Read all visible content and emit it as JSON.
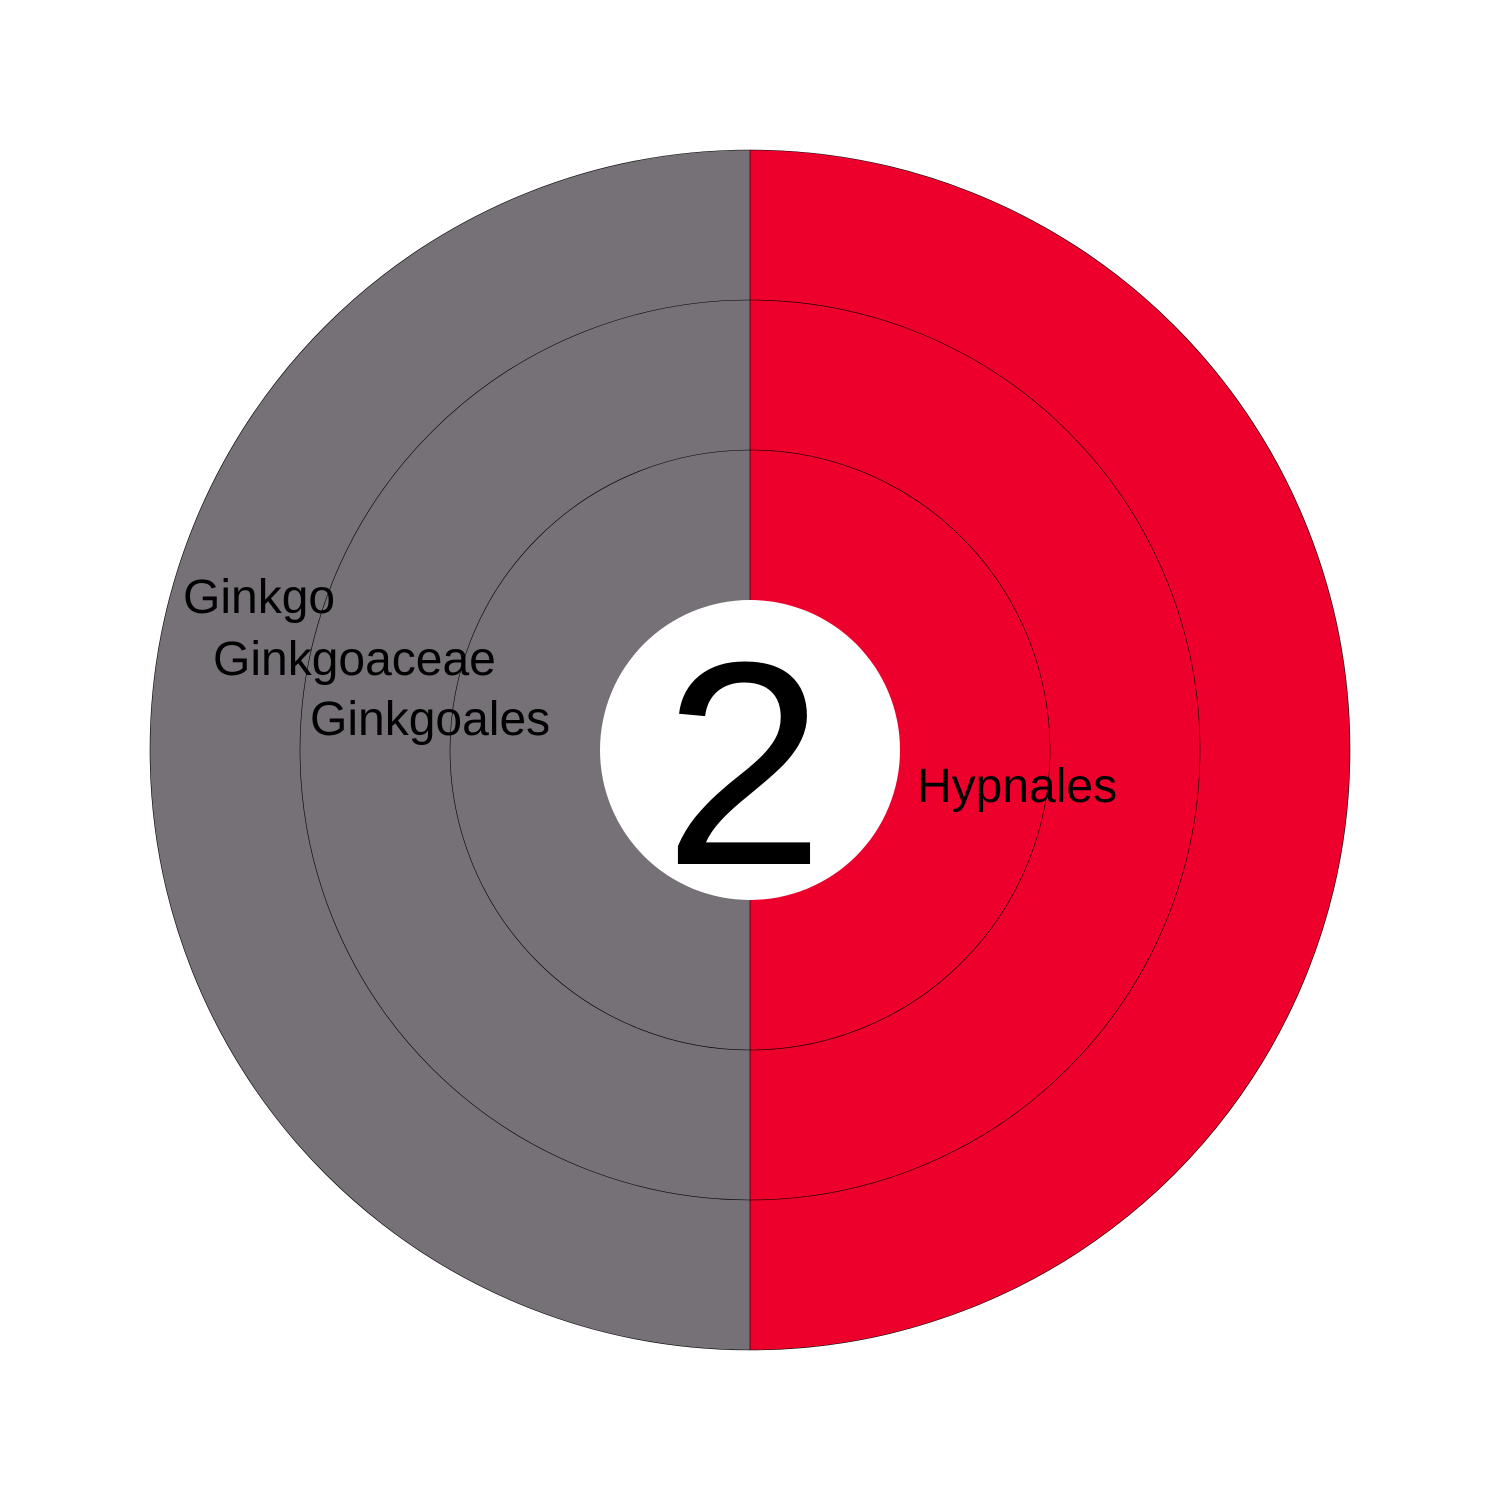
{
  "chart_data": {
    "type": "sunburst",
    "center_label": "2",
    "segments": [
      {
        "name": "Hypnales",
        "rings": [
          "Hypnales"
        ],
        "value": 1,
        "color": "#ee002c"
      },
      {
        "name": "Ginkgoales",
        "rings": [
          "Ginkgoales",
          "Ginkgoaceae",
          "Ginkgo"
        ],
        "value": 1,
        "color": "#757177"
      }
    ],
    "labels": [
      {
        "text": "Ginkgo"
      },
      {
        "text": "Ginkgoaceae"
      },
      {
        "text": "Ginkgoales"
      },
      {
        "text": "Hypnales"
      }
    ]
  }
}
